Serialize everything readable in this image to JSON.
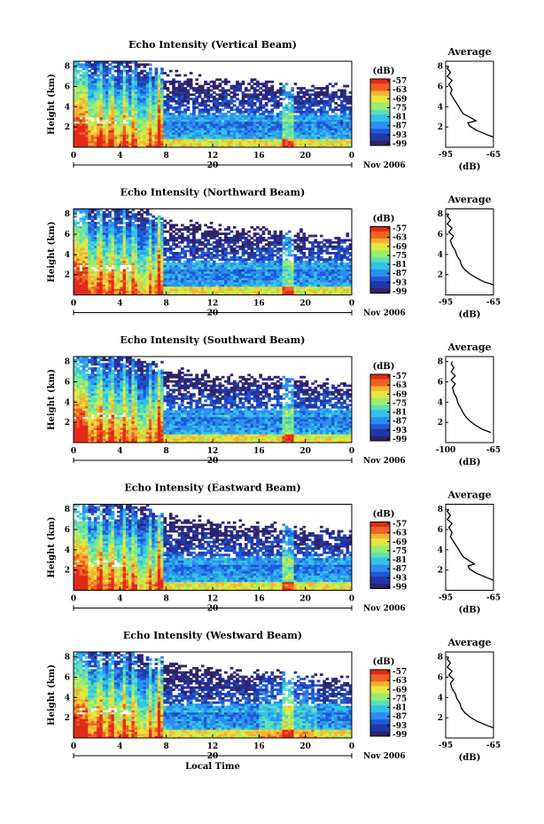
{
  "colors": {
    "palette": [
      "#30226a",
      "#2238a8",
      "#1f58d8",
      "#2c8ff0",
      "#33c4e8",
      "#5ee0b4",
      "#9aec70",
      "#e4e640",
      "#f8b230",
      "#f06224",
      "#e02a18"
    ],
    "missing": "#ffffff"
  },
  "chart_data": [
    {
      "type": "heatmap",
      "panel": "vertical",
      "title": "Echo Intensity (Vertical Beam)",
      "ylabel": "Height (km)",
      "x_ticks": [
        "0",
        "4",
        "8",
        "12",
        "16",
        "20",
        "0"
      ],
      "y_ticks": [
        "2",
        "4",
        "6",
        "8"
      ],
      "date_tick": "20",
      "date_label": "Nov 2006",
      "colorbar": {
        "label": "(dB)",
        "ticks": [
          "-57",
          "-63",
          "-69",
          "-75",
          "-81",
          "-87",
          "-93",
          "-99"
        ]
      },
      "average": {
        "title": "Average",
        "xlabel": "(dB)",
        "x_ticks": [
          "-95",
          "-65"
        ],
        "y_ticks": [
          "2",
          "4",
          "6",
          "8"
        ],
        "profile": [
          [
            -65,
            1.0
          ],
          [
            -70,
            1.3
          ],
          [
            -76,
            1.7
          ],
          [
            -80,
            2.1
          ],
          [
            -81,
            2.4
          ],
          [
            -76,
            2.6
          ],
          [
            -79,
            2.9
          ],
          [
            -84,
            3.3
          ],
          [
            -86,
            3.8
          ],
          [
            -88,
            4.3
          ],
          [
            -90,
            4.8
          ],
          [
            -92,
            5.3
          ],
          [
            -91,
            5.7
          ],
          [
            -93,
            6.2
          ],
          [
            -91,
            6.6
          ],
          [
            -94,
            7.0
          ],
          [
            -92,
            7.4
          ],
          [
            -94,
            7.8
          ],
          [
            -93,
            8.0
          ]
        ]
      }
    },
    {
      "type": "heatmap",
      "panel": "northward",
      "title": "Echo Intensity (Northward Beam)",
      "ylabel": "Height (km)",
      "x_ticks": [
        "0",
        "4",
        "8",
        "12",
        "16",
        "20",
        "0"
      ],
      "y_ticks": [
        "2",
        "4",
        "6",
        "8"
      ],
      "date_tick": "20",
      "date_label": "Nov 2006",
      "colorbar": {
        "label": "(dB)",
        "ticks": [
          "-57",
          "-63",
          "-69",
          "-75",
          "-81",
          "-87",
          "-93",
          "-99"
        ]
      },
      "average": {
        "title": "Average",
        "xlabel": "(dB)",
        "x_ticks": [
          "-95",
          "-65"
        ],
        "y_ticks": [
          "2",
          "4",
          "6",
          "8"
        ],
        "profile": [
          [
            -65,
            1.0
          ],
          [
            -71,
            1.3
          ],
          [
            -76,
            1.7
          ],
          [
            -80,
            2.1
          ],
          [
            -83,
            2.5
          ],
          [
            -85,
            2.9
          ],
          [
            -86,
            3.4
          ],
          [
            -88,
            3.9
          ],
          [
            -89,
            4.4
          ],
          [
            -91,
            4.9
          ],
          [
            -92,
            5.4
          ],
          [
            -90,
            5.8
          ],
          [
            -93,
            6.2
          ],
          [
            -91,
            6.6
          ],
          [
            -94,
            7.0
          ],
          [
            -92,
            7.4
          ],
          [
            -94,
            7.8
          ],
          [
            -93,
            8.0
          ]
        ]
      }
    },
    {
      "type": "heatmap",
      "panel": "southward",
      "title": "Echo Intensity (Southward Beam)",
      "ylabel": "Height (km)",
      "x_ticks": [
        "0",
        "4",
        "8",
        "12",
        "16",
        "20",
        "0"
      ],
      "y_ticks": [
        "2",
        "4",
        "6",
        "8"
      ],
      "date_tick": "20",
      "date_label": "Nov 2006",
      "colorbar": {
        "label": "(dB)",
        "ticks": [
          "-57",
          "-63",
          "-69",
          "-75",
          "-81",
          "-87",
          "-93",
          "-99"
        ]
      },
      "average": {
        "title": "Average",
        "xlabel": "(dB)",
        "x_ticks": [
          "-100",
          "-65"
        ],
        "y_ticks": [
          "2",
          "4",
          "6",
          "8"
        ],
        "profile": [
          [
            -67,
            1.0
          ],
          [
            -73,
            1.3
          ],
          [
            -78,
            1.7
          ],
          [
            -82,
            2.1
          ],
          [
            -85,
            2.5
          ],
          [
            -87,
            2.9
          ],
          [
            -89,
            3.4
          ],
          [
            -91,
            3.9
          ],
          [
            -92,
            4.4
          ],
          [
            -94,
            4.9
          ],
          [
            -95,
            5.4
          ],
          [
            -93,
            5.8
          ],
          [
            -96,
            6.2
          ],
          [
            -93,
            6.6
          ],
          [
            -96,
            7.0
          ],
          [
            -94,
            7.4
          ],
          [
            -96,
            7.8
          ],
          [
            -95,
            8.0
          ]
        ]
      }
    },
    {
      "type": "heatmap",
      "panel": "eastward",
      "title": "Echo Intensity (Eastward Beam)",
      "ylabel": "Height (km)",
      "x_ticks": [
        "0",
        "4",
        "8",
        "12",
        "16",
        "20",
        "0"
      ],
      "y_ticks": [
        "2",
        "4",
        "6",
        "8"
      ],
      "date_tick": "20",
      "date_label": "Nov 2006",
      "colorbar": {
        "label": "(dB)",
        "ticks": [
          "-57",
          "-63",
          "-69",
          "-75",
          "-81",
          "-87",
          "-93",
          "-99"
        ]
      },
      "average": {
        "title": "Average",
        "xlabel": "(dB)",
        "x_ticks": [
          "-95",
          "-65"
        ],
        "y_ticks": [
          "2",
          "4",
          "6",
          "8"
        ],
        "profile": [
          [
            -65,
            1.0
          ],
          [
            -70,
            1.3
          ],
          [
            -76,
            1.7
          ],
          [
            -80,
            2.1
          ],
          [
            -81,
            2.4
          ],
          [
            -77,
            2.6
          ],
          [
            -80,
            2.9
          ],
          [
            -84,
            3.3
          ],
          [
            -86,
            3.8
          ],
          [
            -88,
            4.3
          ],
          [
            -90,
            4.8
          ],
          [
            -92,
            5.3
          ],
          [
            -91,
            5.7
          ],
          [
            -93,
            6.2
          ],
          [
            -91,
            6.6
          ],
          [
            -94,
            7.0
          ],
          [
            -92,
            7.4
          ],
          [
            -94,
            7.8
          ],
          [
            -93,
            8.0
          ]
        ]
      }
    },
    {
      "type": "heatmap",
      "panel": "westward",
      "title": "Echo Intensity (Westward Beam)",
      "ylabel": "Height (km)",
      "xlabel": "Local Time",
      "x_ticks": [
        "0",
        "4",
        "8",
        "12",
        "16",
        "20",
        "0"
      ],
      "y_ticks": [
        "2",
        "4",
        "6",
        "8"
      ],
      "date_tick": "20",
      "date_label": "Nov 2006",
      "colorbar": {
        "label": "(dB)",
        "ticks": [
          "-57",
          "-63",
          "-69",
          "-75",
          "-81",
          "-87",
          "-93",
          "-99"
        ]
      },
      "average": {
        "title": "Average",
        "xlabel": "(dB)",
        "x_ticks": [
          "-95",
          "-65"
        ],
        "y_ticks": [
          "2",
          "4",
          "6",
          "8"
        ],
        "profile": [
          [
            -65,
            1.0
          ],
          [
            -70,
            1.3
          ],
          [
            -76,
            1.7
          ],
          [
            -80,
            2.1
          ],
          [
            -83,
            2.5
          ],
          [
            -85,
            2.9
          ],
          [
            -86,
            3.4
          ],
          [
            -88,
            3.9
          ],
          [
            -89,
            4.4
          ],
          [
            -91,
            4.9
          ],
          [
            -92,
            5.4
          ],
          [
            -90,
            5.8
          ],
          [
            -93,
            6.2
          ],
          [
            -91,
            6.6
          ],
          [
            -94,
            7.0
          ],
          [
            -92,
            7.4
          ],
          [
            -94,
            7.8
          ],
          [
            -93,
            8.0
          ]
        ]
      }
    }
  ]
}
